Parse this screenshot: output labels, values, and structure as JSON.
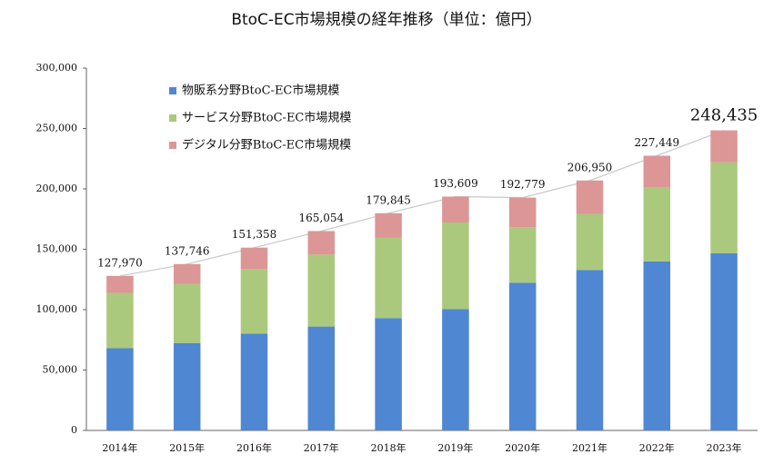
{
  "chart_data": {
    "type": "stacked_bar",
    "title": "BtoC-EC市場規模の経年推移（単位：億円）",
    "categories": [
      "2014年",
      "2015年",
      "2016年",
      "2017年",
      "2018年",
      "2019年",
      "2020年",
      "2021年",
      "2022年",
      "2023年"
    ],
    "series": [
      {
        "name": "物販系分野BtoC-EC市場規模",
        "color": "#4f87d2",
        "values": [
          68043,
          72398,
          80043,
          86008,
          92992,
          100515,
          122333,
          132865,
          139997,
          146760
        ]
      },
      {
        "name": "サービス分野BtoC-EC市場規模",
        "color": "#abc97c",
        "values": [
          45791,
          49014,
          53532,
          59568,
          66471,
          71672,
          45832,
          46424,
          61477,
          75169
        ]
      },
      {
        "name": "デジタル分野BtoC-EC市場規模",
        "color": "#dc9696",
        "values": [
          14136,
          16334,
          17783,
          19478,
          20382,
          21422,
          24614,
          27661,
          25975,
          26506
        ]
      }
    ],
    "totals": {
      "values": [
        127970,
        137746,
        151358,
        165054,
        179845,
        193609,
        192779,
        206950,
        227449,
        248435
      ],
      "value_labels": [
        "127,970",
        "137,746",
        "151,358",
        "165,054",
        "179,845",
        "193,609",
        "192,779",
        "206,950",
        "227,449",
        "248,435"
      ]
    },
    "ylim": [
      0,
      300000
    ],
    "yticks": [
      0,
      {
        "value": 50000,
        "label": "50,000"
      },
      {
        "value": 100000,
        "label": "100,000"
      },
      {
        "value": 150000,
        "label": "150,000"
      },
      {
        "value": 200000,
        "label": "200,000"
      },
      {
        "value": 250000,
        "label": "250,000"
      },
      {
        "value": 300000,
        "label": "300,000"
      }
    ],
    "legend": "upper-left"
  }
}
